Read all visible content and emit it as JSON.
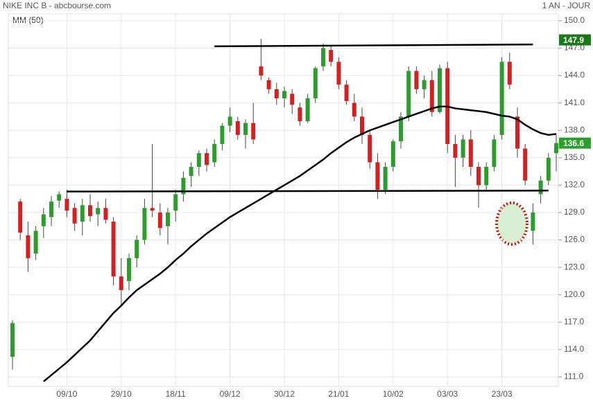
{
  "header": {
    "title": "NIKE INC B - abcbourse.com",
    "period": "1 AN - JOUR"
  },
  "chart_data": {
    "type": "candlestick",
    "indicator_label": "MM (50)",
    "categories": [
      null,
      null,
      null,
      null,
      null,
      null,
      null,
      "09/10",
      null,
      null,
      null,
      null,
      null,
      null,
      "29/10",
      null,
      null,
      null,
      null,
      null,
      null,
      "18/11",
      null,
      null,
      null,
      null,
      null,
      null,
      "09/12",
      null,
      null,
      null,
      null,
      null,
      null,
      "30/12",
      null,
      null,
      null,
      null,
      null,
      null,
      "21/01",
      null,
      null,
      null,
      null,
      null,
      null,
      "10/02",
      null,
      null,
      null,
      null,
      null,
      null,
      "03/03",
      null,
      null,
      null,
      null,
      null,
      null,
      "23/03",
      null,
      null,
      null,
      null,
      null,
      null,
      null
    ],
    "open": [
      113.2,
      130.2,
      126.5,
      124.5,
      127.5,
      128.5,
      130.3,
      130.5,
      129.5,
      128.0,
      129.8,
      128.8,
      129.5,
      128.0,
      122.0,
      121.5,
      124.0,
      126.0,
      129.5,
      129.0,
      127.5,
      129.2,
      131.0,
      133.0,
      134.0,
      135.5,
      134.5,
      136.5,
      138.5,
      139.0,
      137.5,
      138.8,
      145.0,
      143.5,
      142.5,
      141.5,
      142.0,
      140.5,
      139.0,
      141.5,
      145.0,
      146.8,
      145.5,
      143.0,
      141.0,
      139.5,
      137.5,
      134.5,
      131.5,
      134.0,
      136.8,
      139.5,
      144.5,
      142.5,
      143.5,
      140.0,
      144.8,
      136.5,
      135.0,
      137.0,
      134.0,
      132.0,
      134.0,
      137.5,
      145.5,
      139.5,
      136.0,
      127.0,
      131.0,
      132.5,
      135.5
    ],
    "high": [
      117.2,
      130.5,
      128.0,
      127.5,
      129.5,
      130.8,
      131.3,
      131.5,
      130.0,
      130.5,
      131.0,
      130.2,
      130.5,
      128.5,
      124.0,
      124.5,
      126.5,
      130.5,
      136.5,
      130.0,
      129.5,
      131.5,
      133.5,
      134.5,
      135.8,
      136.0,
      137.0,
      138.8,
      140.5,
      139.5,
      139.2,
      141.0,
      148.0,
      143.8,
      143.2,
      142.8,
      142.5,
      141.0,
      142.0,
      145.0,
      147.5,
      147.2,
      146.0,
      143.5,
      142.0,
      140.5,
      138.0,
      135.5,
      134.5,
      137.0,
      140.0,
      145.0,
      145.0,
      144.0,
      144.5,
      145.2,
      145.5,
      137.5,
      137.5,
      138.0,
      134.5,
      134.5,
      137.5,
      146.0,
      146.5,
      140.5,
      136.5,
      130.0,
      133.0,
      135.5,
      137.5
    ],
    "low": [
      111.8,
      126.0,
      122.5,
      123.8,
      126.2,
      127.5,
      129.5,
      128.5,
      127.0,
      126.5,
      128.0,
      127.5,
      127.8,
      121.0,
      118.8,
      120.5,
      123.0,
      125.5,
      128.5,
      126.5,
      125.5,
      128.0,
      130.2,
      131.8,
      133.0,
      133.5,
      134.0,
      135.8,
      137.8,
      137.0,
      136.0,
      136.5,
      143.5,
      142.0,
      140.8,
      140.5,
      139.8,
      138.5,
      138.8,
      141.0,
      144.5,
      145.0,
      142.5,
      140.8,
      139.0,
      136.5,
      133.8,
      130.5,
      131.0,
      133.5,
      136.0,
      139.0,
      142.0,
      141.5,
      139.5,
      139.8,
      135.5,
      131.8,
      134.0,
      133.0,
      129.5,
      131.5,
      133.5,
      137.0,
      142.5,
      135.0,
      132.0,
      125.5,
      130.0,
      132.0,
      133.5
    ],
    "close": [
      116.9,
      126.8,
      124.0,
      127.0,
      128.8,
      130.2,
      131.0,
      129.2,
      127.8,
      129.8,
      128.6,
      129.5,
      128.2,
      122.0,
      120.5,
      124.0,
      126.0,
      129.5,
      129.2,
      127.3,
      129.0,
      131.0,
      132.8,
      134.0,
      135.5,
      134.2,
      136.5,
      138.5,
      139.5,
      137.5,
      138.8,
      137.0,
      144.0,
      142.5,
      141.5,
      142.3,
      140.8,
      139.0,
      141.5,
      144.8,
      147.0,
      145.5,
      143.0,
      141.2,
      139.5,
      137.5,
      134.5,
      131.5,
      134.0,
      136.8,
      139.5,
      144.5,
      142.5,
      143.5,
      140.0,
      144.8,
      136.5,
      135.0,
      137.0,
      134.0,
      132.0,
      134.0,
      137.0,
      145.5,
      143.0,
      136.0,
      132.5,
      129.0,
      132.5,
      135.0,
      136.6
    ],
    "up_color": "#2a9d2a",
    "down_color": "#d42020",
    "ma": {
      "color": "#000000",
      "values": [
        null,
        null,
        null,
        null,
        110.5,
        111.2,
        111.9,
        112.6,
        113.4,
        114.2,
        115.0,
        116.0,
        117.0,
        118.0,
        118.8,
        119.7,
        120.5,
        121.1,
        121.7,
        122.3,
        123.0,
        123.8,
        124.5,
        125.3,
        126.0,
        126.7,
        127.3,
        127.9,
        128.5,
        129.0,
        129.5,
        130.0,
        130.5,
        131.0,
        131.5,
        132.0,
        132.5,
        133.0,
        133.6,
        134.2,
        134.8,
        135.5,
        136.1,
        136.7,
        137.2,
        137.6,
        138.0,
        138.3,
        138.6,
        138.9,
        139.2,
        139.5,
        139.8,
        140.1,
        140.4,
        140.6,
        140.6,
        140.4,
        140.3,
        140.2,
        140.1,
        140.0,
        139.8,
        139.6,
        139.5,
        139.2,
        138.6,
        138.1,
        137.7,
        137.5,
        137.6
      ]
    },
    "trendlines": [
      {
        "x": [
          7,
          69
        ],
        "y": [
          131.3,
          131.4
        ]
      },
      {
        "x": [
          26,
          67
        ],
        "y": [
          147.2,
          147.4
        ]
      }
    ],
    "price_tags": [
      {
        "value": 147.9,
        "color": "#1a7a1a"
      },
      {
        "value": 136.6,
        "color": "#2aa12a"
      }
    ],
    "ylim": [
      110.2,
      150.6
    ],
    "yticks": [
      {
        "value": 111,
        "label": "111.0"
      },
      {
        "value": 114,
        "label": "114.0"
      },
      {
        "value": 117,
        "label": "117.0"
      },
      {
        "value": 120,
        "label": "120.0"
      },
      {
        "value": 123,
        "label": "123.0"
      },
      {
        "value": 126,
        "label": "126.0"
      },
      {
        "value": 129,
        "label": "129.0"
      },
      {
        "value": 132,
        "label": "132.0"
      },
      {
        "value": 135,
        "label": "135.0"
      },
      {
        "value": 138,
        "label": "138.0"
      },
      {
        "value": 141,
        "label": "141.0"
      },
      {
        "value": 144,
        "label": "144.0"
      },
      {
        "value": 147,
        "label": "147.0"
      },
      {
        "value": 150,
        "label": "150.0"
      }
    ],
    "grid": true
  }
}
